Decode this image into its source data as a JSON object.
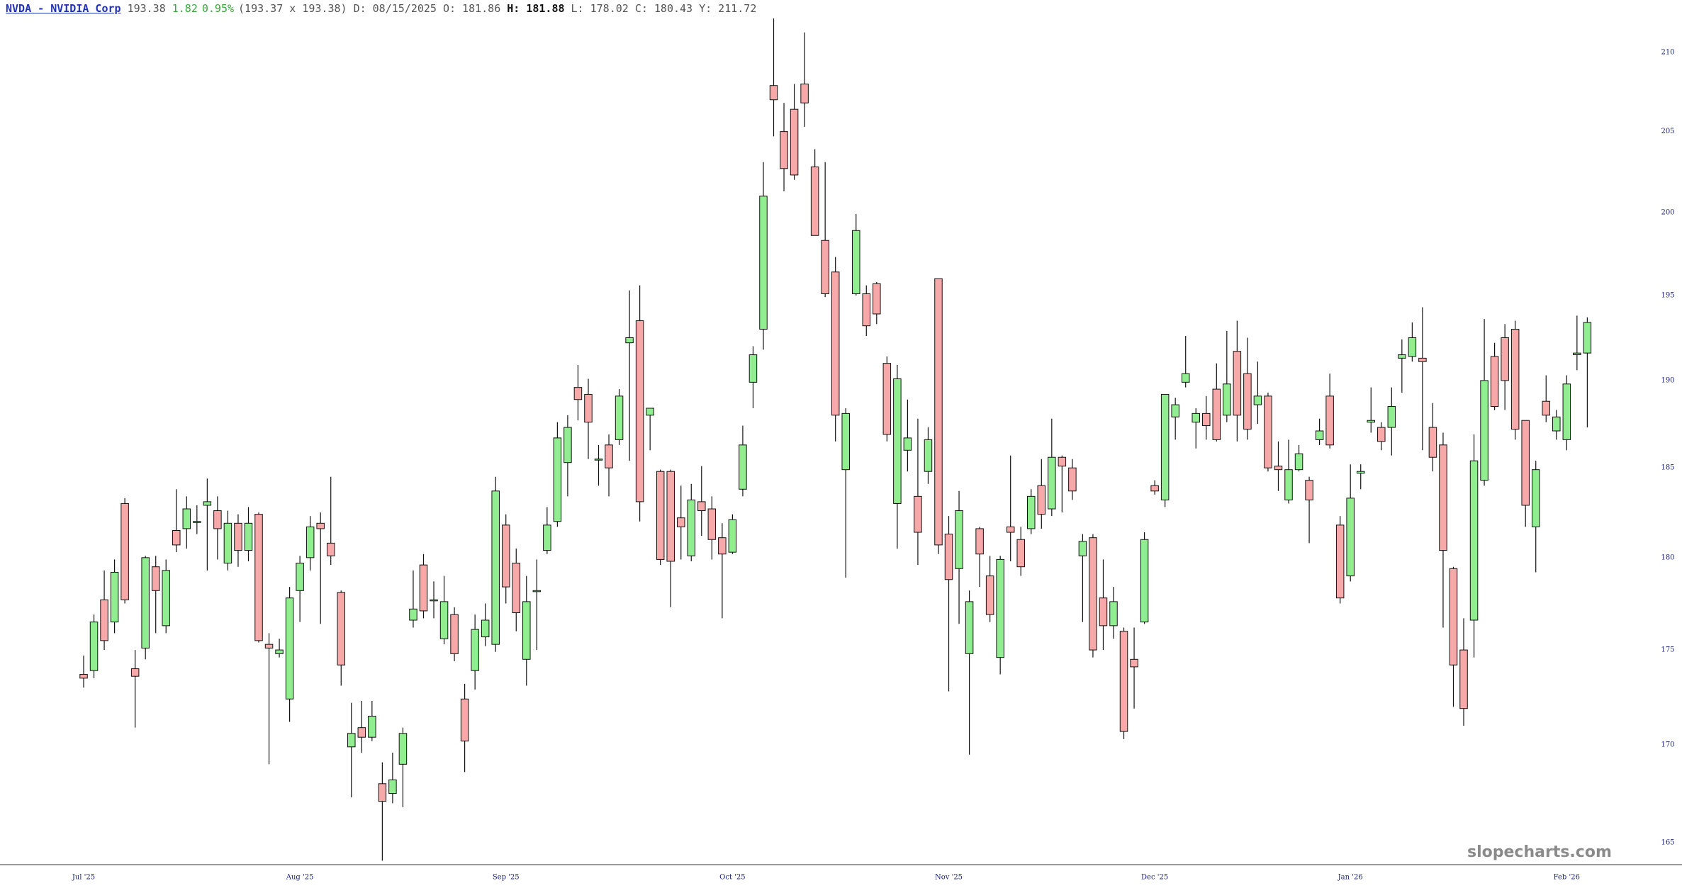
{
  "header": {
    "symbol": "NVDA - NVIDIA Corp",
    "last": "193.38",
    "change": "1.82",
    "change_pct": "0.95%",
    "bid_ask": "(193.37 x 193.38)",
    "date": "D: 08/15/2025",
    "open": "O: 181.86",
    "high": "H: 181.88",
    "low": "L: 178.02",
    "close": "C: 180.43",
    "year_high": "Y: 211.72"
  },
  "watermark": "slopecharts.com",
  "chart_data": {
    "type": "candlestick",
    "log": true,
    "up_color": "#90ee90",
    "down_color": "#f7a8a8",
    "ylim": [
      163.9,
      213.4
    ],
    "yticks": [
      165,
      170,
      175,
      180,
      185,
      190,
      195,
      200,
      205,
      210
    ],
    "categories": [
      "Jul '25",
      null,
      null,
      null,
      null,
      null,
      null,
      null,
      null,
      null,
      null,
      null,
      null,
      null,
      null,
      null,
      null,
      null,
      null,
      null,
      null,
      "Aug '25",
      null,
      null,
      null,
      null,
      null,
      null,
      null,
      null,
      null,
      null,
      null,
      null,
      null,
      null,
      null,
      null,
      null,
      null,
      null,
      "Sep '25",
      null,
      null,
      null,
      null,
      null,
      null,
      null,
      null,
      null,
      null,
      null,
      null,
      null,
      null,
      null,
      null,
      null,
      null,
      null,
      null,
      null,
      "Oct '25",
      null,
      null,
      null,
      null,
      null,
      null,
      null,
      null,
      null,
      null,
      null,
      null,
      null,
      null,
      null,
      null,
      null,
      null,
      null,
      null,
      "Nov '25",
      null,
      null,
      null,
      null,
      null,
      null,
      null,
      null,
      null,
      null,
      null,
      null,
      null,
      null,
      null,
      null,
      null,
      null,
      null,
      "Dec '25",
      null,
      null,
      null,
      null,
      null,
      null,
      null,
      null,
      null,
      null,
      null,
      null,
      null,
      null,
      null,
      null,
      null,
      null,
      "Jan '26",
      null,
      null,
      null,
      null,
      null,
      null,
      null,
      null,
      null,
      null,
      null,
      null,
      null,
      null,
      null,
      null,
      null,
      null,
      null,
      null,
      "Feb '26",
      null,
      null
    ],
    "open": [
      173.7,
      173.9,
      177.7,
      176.5,
      183.0,
      174.0,
      175.1,
      179.5,
      176.3,
      181.5,
      181.6,
      182.0,
      182.9,
      182.6,
      179.7,
      181.9,
      180.4,
      182.4,
      175.3,
      174.8,
      172.4,
      178.2,
      180.0,
      181.9,
      180.8,
      178.1,
      169.9,
      170.9,
      170.4,
      168.0,
      167.5,
      169.0,
      176.6,
      179.6,
      177.7,
      175.6,
      176.9,
      172.4,
      173.9,
      175.7,
      175.3,
      181.8,
      179.7,
      174.5,
      178.2,
      180.4,
      182.0,
      185.3,
      189.6,
      189.2,
      185.5,
      186.3,
      186.6,
      192.2,
      193.5,
      188.0,
      184.8,
      184.8,
      182.2,
      180.1,
      183.1,
      182.7,
      181.1,
      180.3,
      183.8,
      189.9,
      193.0,
      207.9,
      205.0,
      206.4,
      208.0,
      202.8,
      198.3,
      196.4,
      184.9,
      195.1,
      195.1,
      195.7,
      191.0,
      183.0,
      186.0,
      183.4,
      184.8,
      196.0,
      181.3,
      179.4,
      174.8,
      181.6,
      179.0,
      174.6,
      181.7,
      181.0,
      181.6,
      184.0,
      182.7,
      185.6,
      185.0,
      180.1,
      181.1,
      177.8,
      176.3,
      176.0,
      174.5,
      176.5,
      184.0,
      183.2,
      187.9,
      189.9,
      187.6,
      188.1,
      189.5,
      188.0,
      191.7,
      190.4,
      188.6,
      189.1,
      185.1,
      183.2,
      184.9,
      184.3,
      186.6,
      189.1,
      181.8,
      179.0,
      184.7,
      187.6,
      187.3,
      187.3,
      191.3,
      191.4,
      191.3,
      187.3,
      186.3,
      179.4,
      175.0,
      176.6,
      184.3,
      191.4,
      192.5,
      193.0,
      187.7,
      181.7,
      188.8,
      187.1,
      186.6,
      191.5,
      191.6
    ],
    "high": [
      174.7,
      176.9,
      179.3,
      179.9,
      183.3,
      175.0,
      180.1,
      180.1,
      179.9,
      183.8,
      183.4,
      182.9,
      184.4,
      183.4,
      182.6,
      182.4,
      182.8,
      182.5,
      175.9,
      175.6,
      178.4,
      180.1,
      182.3,
      182.5,
      184.5,
      178.2,
      172.2,
      172.3,
      172.3,
      169.1,
      169.6,
      170.9,
      179.3,
      180.2,
      178.7,
      179.0,
      177.3,
      173.2,
      176.9,
      177.5,
      184.5,
      182.4,
      180.5,
      179.0,
      179.9,
      182.8,
      187.6,
      188.0,
      190.9,
      190.1,
      186.3,
      186.9,
      189.5,
      195.3,
      195.6,
      188.4,
      184.9,
      184.9,
      184.0,
      184.1,
      185.1,
      183.4,
      181.9,
      182.4,
      187.4,
      192.0,
      203.1,
      212.2,
      206.8,
      208.0,
      211.3,
      203.9,
      203.1,
      197.3,
      188.4,
      199.9,
      195.6,
      195.8,
      191.4,
      190.9,
      188.9,
      187.8,
      187.3,
      196.0,
      182.3,
      183.7,
      178.2,
      181.7,
      180.1,
      180.1,
      185.7,
      181.7,
      183.8,
      185.5,
      187.8,
      185.7,
      185.5,
      181.3,
      181.3,
      179.9,
      178.4,
      176.2,
      176.2,
      181.4,
      184.3,
      189.2,
      189.0,
      192.6,
      188.4,
      189.1,
      191.0,
      192.9,
      193.5,
      192.5,
      191.1,
      189.3,
      186.5,
      186.6,
      186.3,
      184.5,
      187.8,
      190.4,
      182.3,
      185.2,
      185.2,
      189.6,
      187.6,
      189.6,
      192.4,
      193.4,
      194.3,
      188.7,
      187.0,
      179.5,
      176.7,
      186.9,
      193.6,
      192.2,
      193.3,
      193.5,
      187.7,
      185.4,
      190.3,
      188.3,
      190.3,
      193.8,
      193.7
    ],
    "low": [
      173.0,
      173.5,
      175.0,
      175.9,
      177.5,
      170.9,
      174.5,
      175.9,
      175.9,
      180.3,
      180.5,
      181.3,
      179.3,
      179.9,
      179.3,
      179.5,
      179.8,
      175.4,
      169.0,
      174.6,
      171.2,
      176.5,
      179.3,
      176.4,
      179.6,
      173.1,
      167.3,
      169.6,
      170.2,
      164.1,
      167.0,
      166.8,
      176.2,
      176.7,
      176.7,
      175.3,
      174.4,
      168.6,
      172.9,
      175.2,
      174.9,
      177.5,
      176.0,
      173.1,
      175.0,
      180.2,
      181.7,
      183.4,
      187.7,
      185.5,
      184.0,
      183.4,
      186.3,
      185.4,
      182.0,
      186.0,
      179.6,
      177.3,
      179.9,
      179.8,
      181.2,
      179.9,
      176.7,
      180.2,
      183.4,
      188.4,
      191.8,
      204.7,
      201.3,
      202.0,
      205.3,
      198.6,
      194.9,
      186.5,
      178.9,
      195.0,
      192.6,
      193.3,
      186.5,
      180.5,
      184.8,
      179.6,
      184.1,
      180.2,
      172.8,
      176.4,
      169.5,
      178.4,
      176.5,
      173.7,
      179.8,
      179.0,
      181.3,
      181.6,
      182.3,
      182.5,
      183.2,
      176.5,
      174.6,
      175.0,
      175.6,
      170.3,
      171.9,
      176.4,
      183.5,
      182.8,
      186.6,
      189.6,
      186.1,
      186.6,
      186.5,
      187.6,
      186.5,
      186.6,
      187.5,
      184.8,
      183.7,
      183.0,
      184.8,
      180.8,
      186.3,
      186.1,
      177.5,
      178.7,
      183.8,
      187.0,
      186.0,
      185.7,
      189.3,
      191.1,
      186.0,
      184.8,
      176.2,
      172.0,
      171.0,
      174.6,
      184.0,
      188.3,
      188.3,
      186.6,
      181.7,
      179.2,
      187.6,
      186.6,
      186.0,
      190.6,
      187.3
    ],
    "close": [
      173.5,
      176.5,
      175.5,
      179.2,
      177.7,
      173.6,
      180.0,
      178.2,
      179.3,
      180.7,
      182.7,
      182.0,
      183.1,
      181.6,
      181.9,
      180.4,
      181.9,
      175.5,
      175.1,
      175.0,
      177.8,
      179.7,
      181.7,
      181.6,
      180.1,
      174.2,
      170.6,
      170.4,
      171.5,
      167.1,
      168.2,
      170.6,
      177.2,
      177.1,
      177.7,
      177.6,
      174.8,
      170.2,
      176.1,
      176.6,
      183.7,
      178.4,
      177.0,
      177.6,
      178.2,
      181.8,
      186.7,
      187.3,
      188.9,
      187.6,
      185.5,
      185.0,
      189.1,
      192.5,
      183.1,
      188.4,
      179.9,
      179.8,
      181.7,
      183.2,
      182.6,
      181.0,
      180.2,
      182.1,
      186.3,
      191.5,
      201.0,
      207.0,
      202.7,
      202.3,
      206.8,
      198.6,
      195.1,
      188.0,
      188.1,
      198.9,
      193.2,
      193.9,
      186.9,
      190.1,
      186.7,
      181.4,
      186.6,
      180.7,
      178.8,
      182.6,
      177.6,
      180.2,
      176.9,
      179.9,
      181.4,
      179.5,
      183.4,
      182.4,
      185.6,
      185.1,
      183.7,
      180.9,
      175.0,
      176.3,
      177.6,
      170.7,
      174.1,
      181.0,
      183.7,
      189.2,
      188.6,
      190.4,
      188.1,
      187.4,
      186.6,
      189.8,
      188.0,
      187.2,
      189.1,
      185.0,
      184.9,
      184.9,
      185.8,
      183.2,
      187.1,
      186.3,
      177.8,
      183.3,
      184.8,
      187.7,
      186.5,
      188.5,
      191.5,
      192.5,
      191.1,
      185.6,
      180.4,
      174.2,
      171.9,
      185.4,
      190.0,
      188.5,
      190.0,
      187.2,
      182.9,
      184.9,
      188.0,
      187.9,
      189.8,
      191.6,
      193.4
    ]
  }
}
